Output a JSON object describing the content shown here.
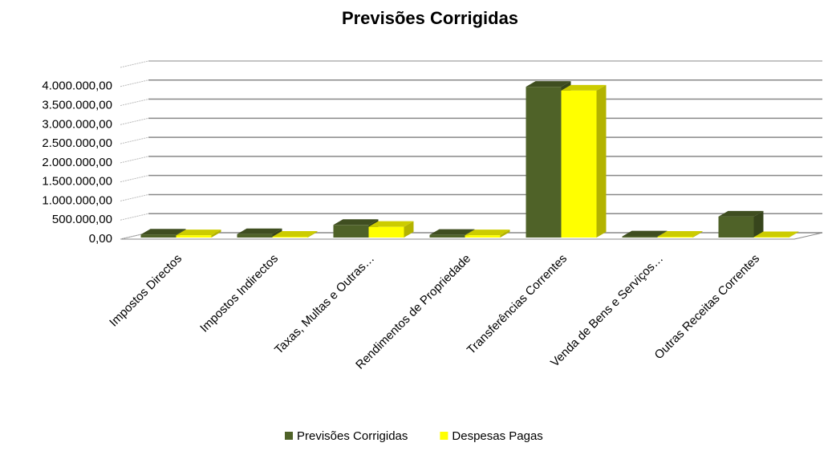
{
  "chart_data": {
    "type": "bar3d",
    "title": "Previsões Corrigidas",
    "categories": [
      "Impostos Directos",
      "Impostos Indirectos",
      "Taxas, Multas e Outras…",
      "Rendimentos de Propriedade",
      "Transferências Correntes",
      "Venda de Bens e Serviços…",
      "Outras Receitas Correntes"
    ],
    "series": [
      {
        "name": "Previsões Corrigidas",
        "color": "#4f6228",
        "values": [
          80000,
          90000,
          330000,
          70000,
          3950000,
          30000,
          550000
        ]
      },
      {
        "name": "Despesas Pagas",
        "color": "#ffff00",
        "values": [
          60000,
          20000,
          280000,
          60000,
          3850000,
          20000,
          10000
        ]
      }
    ],
    "ylim": [
      0,
      4500000
    ],
    "yticks": [
      {
        "value": 0,
        "label": "0,00"
      },
      {
        "value": 500000,
        "label": "500.000,00"
      },
      {
        "value": 1000000,
        "label": "1.000.000,00"
      },
      {
        "value": 1500000,
        "label": "1.500.000,00"
      },
      {
        "value": 2000000,
        "label": "2.000.000,00"
      },
      {
        "value": 2500000,
        "label": "2.500.000,00"
      },
      {
        "value": 3000000,
        "label": "3.000.000,00"
      },
      {
        "value": 3500000,
        "label": "3.500.000,00"
      },
      {
        "value": 4000000,
        "label": "4.000.000,00"
      }
    ],
    "grid": true,
    "legend": "bottom"
  }
}
